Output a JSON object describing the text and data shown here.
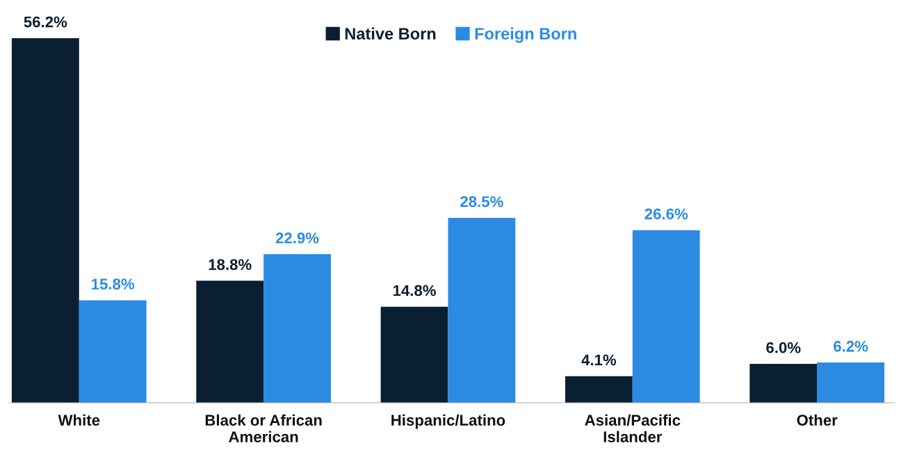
{
  "chart_data": {
    "type": "bar",
    "categories": [
      "White",
      "Black or African\nAmerican",
      "Hispanic/Latino",
      "Asian/Pacific\nIslander",
      "Other"
    ],
    "series": [
      {
        "name": "Native Born",
        "color": "#0b1f33",
        "values": [
          56.2,
          18.8,
          14.8,
          4.1,
          6.0
        ],
        "value_labels": [
          "56.2%",
          "18.8%",
          "14.8%",
          "4.1%",
          "6.0%"
        ]
      },
      {
        "name": "Foreign Born",
        "color": "#2b8be3",
        "values": [
          15.8,
          22.9,
          28.5,
          26.6,
          6.2
        ],
        "value_labels": [
          "15.8%",
          "22.9%",
          "28.5%",
          "26.6%",
          "6.2%"
        ]
      }
    ],
    "legend": "top",
    "grid": false
  }
}
